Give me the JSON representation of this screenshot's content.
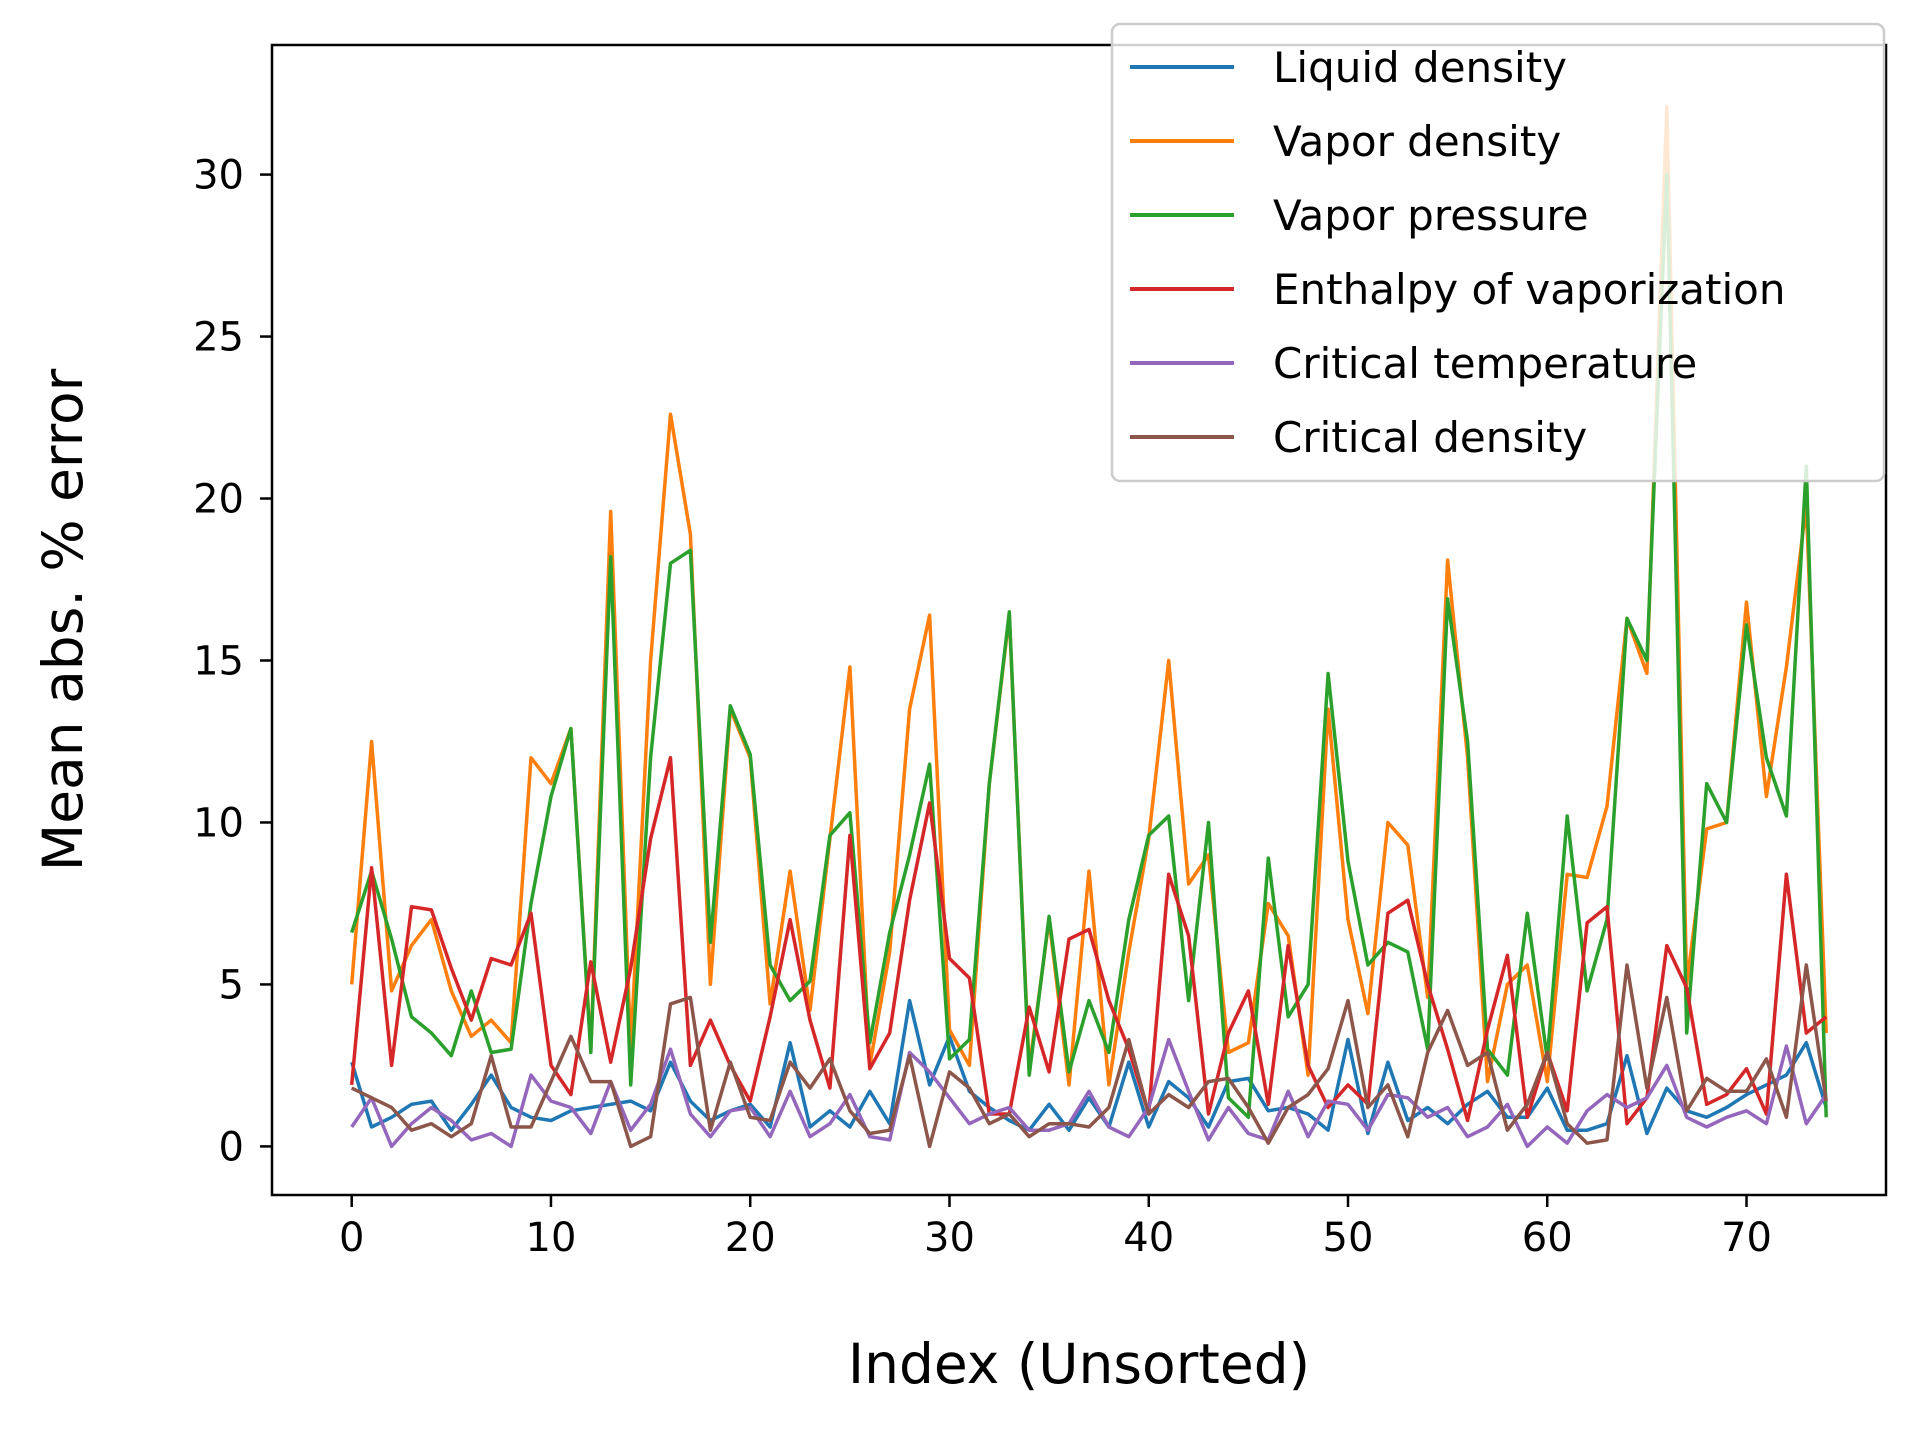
{
  "chart_data": {
    "type": "line",
    "title": "",
    "xlabel": "Index (Unsorted)",
    "ylabel": "Mean abs. % error",
    "xlim": [
      -4,
      77
    ],
    "ylim": [
      -1.5,
      34
    ],
    "xticks": [
      0,
      10,
      20,
      30,
      40,
      50,
      60,
      70
    ],
    "yticks": [
      0,
      5,
      10,
      15,
      20,
      25,
      30
    ],
    "grid": false,
    "legend_position": "top-right",
    "x": [
      0,
      1,
      2,
      3,
      4,
      5,
      6,
      7,
      8,
      9,
      10,
      11,
      12,
      13,
      14,
      15,
      16,
      17,
      18,
      19,
      20,
      21,
      22,
      23,
      24,
      25,
      26,
      27,
      28,
      29,
      30,
      31,
      32,
      33,
      34,
      35,
      36,
      37,
      38,
      39,
      40,
      41,
      42,
      43,
      44,
      45,
      46,
      47,
      48,
      49,
      50,
      51,
      52,
      53,
      54,
      55,
      56,
      57,
      58,
      59,
      60,
      61,
      62,
      63,
      64,
      65,
      66,
      67,
      68,
      69,
      70,
      71,
      72,
      73,
      74
    ],
    "series": [
      {
        "name": "Liquid density",
        "color": "#1f77b4",
        "values": [
          2.6,
          0.6,
          0.9,
          1.3,
          1.4,
          0.5,
          1.3,
          2.2,
          1.2,
          0.9,
          0.8,
          1.1,
          1.2,
          1.3,
          1.4,
          1.1,
          2.6,
          1.4,
          0.8,
          1.1,
          1.3,
          0.6,
          3.2,
          0.6,
          1.1,
          0.6,
          1.7,
          0.7,
          4.5,
          1.9,
          3.4,
          1.7,
          1.2,
          0.8,
          0.5,
          1.3,
          0.5,
          1.5,
          0.6,
          2.6,
          0.6,
          2.0,
          1.5,
          0.6,
          2.0,
          2.1,
          1.1,
          1.2,
          1.0,
          0.5,
          3.3,
          0.4,
          2.6,
          0.8,
          1.2,
          0.7,
          1.3,
          1.7,
          0.9,
          0.9,
          1.8,
          0.5,
          0.5,
          0.7,
          2.8,
          0.4,
          1.8,
          1.1,
          0.9,
          1.2,
          1.6,
          1.9,
          2.2,
          3.2,
          1.2
        ]
      },
      {
        "name": "Vapor density",
        "color": "#ff7f0e",
        "values": [
          5.0,
          12.5,
          4.8,
          6.2,
          7.0,
          4.8,
          3.4,
          3.9,
          3.2,
          12.0,
          11.2,
          12.9,
          3.0,
          19.6,
          3.0,
          15.0,
          22.6,
          18.9,
          5.0,
          13.5,
          12.0,
          4.4,
          8.5,
          4.2,
          9.5,
          14.8,
          2.5,
          6.0,
          13.5,
          16.4,
          3.6,
          2.5,
          11.2,
          16.4,
          2.4,
          7.0,
          1.9,
          8.5,
          1.9,
          6.0,
          9.5,
          15.0,
          8.1,
          9.0,
          2.9,
          3.2,
          7.5,
          6.5,
          2.2,
          13.5,
          7.0,
          4.1,
          10.0,
          9.3,
          4.6,
          18.1,
          12.0,
          2.0,
          5.0,
          5.6,
          2.0,
          8.4,
          8.3,
          10.5,
          16.3,
          14.6,
          32.1,
          5.0,
          9.8,
          10.0,
          16.8,
          10.8,
          14.8,
          19.8,
          3.5
        ]
      },
      {
        "name": "Vapor pressure",
        "color": "#2ca02c",
        "values": [
          6.6,
          8.5,
          6.4,
          4.0,
          3.5,
          2.8,
          4.8,
          2.9,
          3.0,
          7.5,
          10.8,
          12.9,
          2.9,
          18.2,
          1.9,
          12.0,
          18.0,
          18.4,
          6.3,
          13.6,
          12.1,
          5.6,
          4.5,
          5.1,
          9.6,
          10.3,
          3.2,
          6.6,
          9.0,
          11.8,
          2.7,
          3.3,
          11.2,
          16.5,
          2.2,
          7.1,
          2.3,
          4.5,
          2.9,
          7.0,
          9.6,
          10.2,
          4.5,
          10.0,
          1.5,
          0.9,
          8.9,
          4.0,
          5.0,
          14.6,
          8.8,
          5.6,
          6.3,
          6.0,
          3.0,
          16.9,
          12.5,
          3.0,
          2.2,
          7.2,
          2.7,
          10.2,
          4.8,
          7.0,
          16.3,
          15.0,
          30.0,
          3.5,
          11.2,
          10.0,
          16.1,
          12.0,
          10.2,
          21.0,
          0.9
        ]
      },
      {
        "name": "Enthalpy of vaporization",
        "color": "#d62728",
        "values": [
          1.9,
          8.6,
          2.5,
          7.4,
          7.3,
          5.5,
          3.9,
          5.8,
          5.6,
          7.2,
          2.5,
          1.6,
          5.7,
          2.6,
          5.5,
          9.5,
          12.0,
          2.5,
          3.9,
          2.5,
          1.4,
          4.0,
          7.0,
          3.9,
          1.8,
          9.6,
          2.4,
          3.5,
          7.6,
          10.6,
          5.8,
          5.2,
          1.0,
          1.0,
          4.3,
          2.3,
          6.4,
          6.7,
          4.5,
          3.0,
          1.0,
          8.4,
          6.5,
          1.0,
          3.5,
          4.8,
          1.3,
          6.2,
          2.5,
          1.2,
          1.9,
          1.3,
          7.2,
          7.6,
          5.0,
          3.0,
          0.8,
          3.6,
          5.9,
          0.9,
          2.9,
          1.1,
          6.9,
          7.4,
          0.7,
          1.5,
          6.2,
          4.9,
          1.3,
          1.6,
          2.4,
          1.0,
          8.4,
          3.5,
          4.0
        ]
      },
      {
        "name": "Critical temperature",
        "color": "#9467bd",
        "values": [
          0.6,
          1.5,
          0.0,
          0.7,
          1.2,
          0.8,
          0.2,
          0.4,
          0.0,
          2.2,
          1.4,
          1.2,
          0.4,
          2.0,
          0.5,
          1.3,
          3.0,
          1.0,
          0.3,
          1.1,
          1.2,
          0.3,
          1.7,
          0.3,
          0.7,
          1.6,
          0.3,
          0.2,
          2.9,
          2.3,
          1.5,
          0.7,
          1.0,
          1.2,
          0.5,
          0.5,
          0.7,
          1.7,
          0.6,
          0.3,
          1.2,
          3.3,
          1.7,
          0.2,
          1.2,
          0.4,
          0.2,
          1.7,
          0.3,
          1.4,
          1.3,
          0.5,
          1.6,
          1.5,
          0.9,
          1.2,
          0.3,
          0.6,
          1.3,
          0.0,
          0.6,
          0.1,
          1.1,
          1.6,
          1.2,
          1.5,
          2.5,
          0.9,
          0.6,
          0.9,
          1.1,
          0.7,
          3.1,
          0.7,
          1.6
        ]
      },
      {
        "name": "Critical density",
        "color": "#8c564b",
        "values": [
          1.8,
          1.5,
          1.2,
          0.5,
          0.7,
          0.3,
          0.7,
          2.8,
          0.6,
          0.6,
          2.0,
          3.4,
          2.0,
          2.0,
          0.0,
          0.3,
          4.4,
          4.6,
          0.5,
          2.6,
          0.9,
          0.8,
          2.6,
          1.8,
          2.7,
          1.1,
          0.4,
          0.5,
          2.8,
          0.0,
          2.3,
          1.8,
          0.7,
          1.0,
          0.3,
          0.7,
          0.7,
          0.6,
          1.2,
          3.3,
          1.0,
          1.6,
          1.2,
          2.0,
          2.1,
          1.2,
          0.1,
          1.2,
          1.6,
          2.4,
          4.5,
          1.2,
          1.9,
          0.3,
          2.9,
          4.2,
          2.5,
          2.9,
          0.5,
          1.3,
          2.9,
          0.7,
          0.1,
          0.2,
          5.6,
          1.8,
          4.6,
          1.1,
          2.1,
          1.7,
          1.7,
          2.7,
          0.9,
          5.6,
          1.4
        ]
      }
    ]
  }
}
